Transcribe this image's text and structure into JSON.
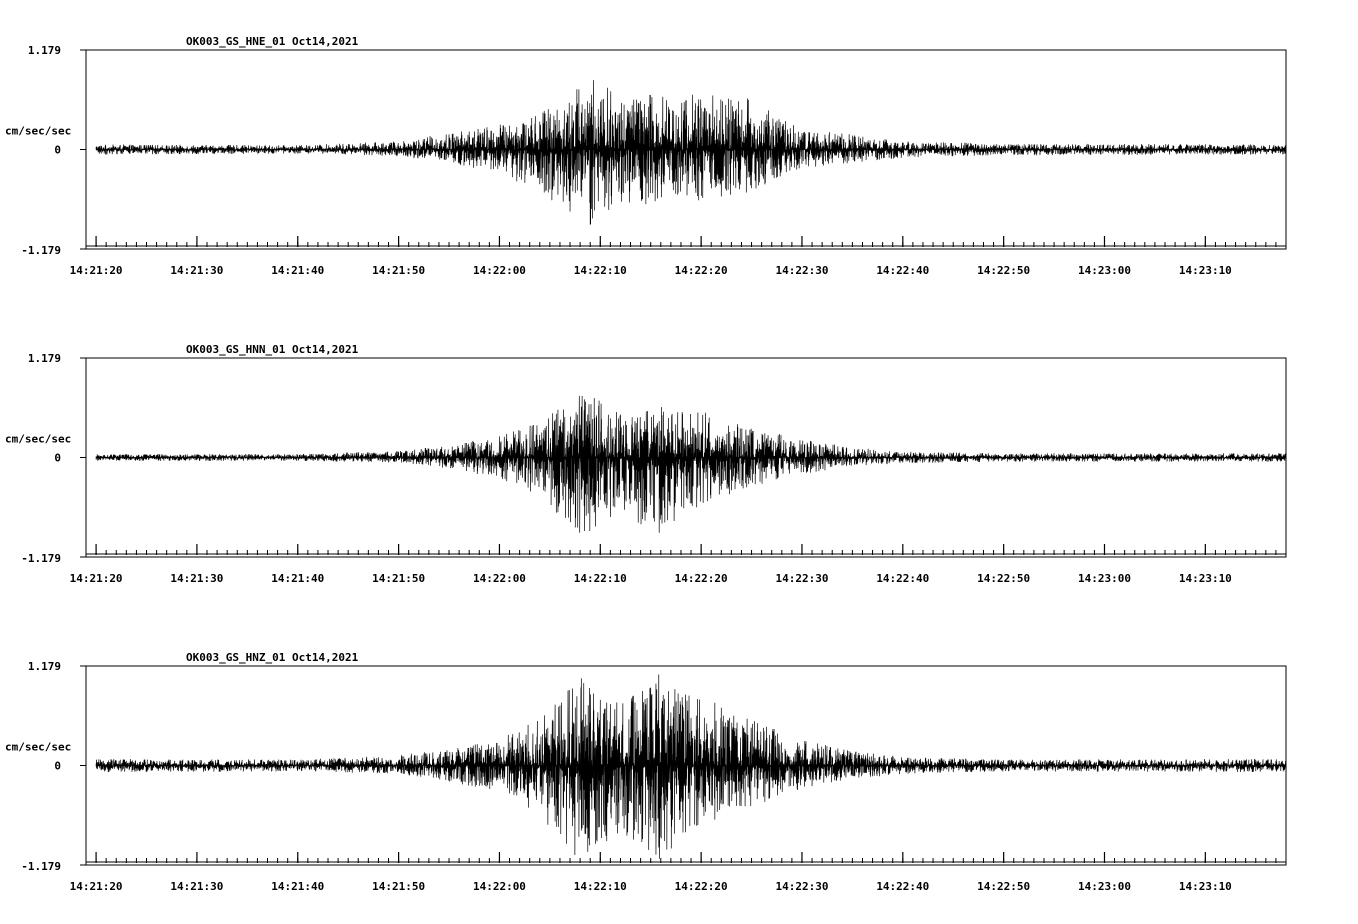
{
  "chart_data": [
    {
      "type": "line",
      "title": "OK003_GS_HNE_01  Oct14,2021",
      "ylabel": "cm/sec/sec",
      "ylim": [
        -1.179,
        1.179
      ],
      "yticks": [
        "1.179",
        "0",
        "-1.179"
      ],
      "xlim": [
        "14:21:19",
        "14:23:18"
      ],
      "xticks": [
        "14:21:20",
        "14:21:30",
        "14:21:40",
        "14:21:50",
        "14:22:00",
        "14:22:10",
        "14:22:20",
        "14:22:30",
        "14:22:40",
        "14:22:50",
        "14:23:00",
        "14:23:10"
      ],
      "grid": false,
      "series": [
        {
          "start": "14:21:20",
          "end": "14:23:18",
          "envelope": [
            {
              "t": "14:21:20",
              "max": 0.06,
              "min": -0.06
            },
            {
              "t": "14:21:40",
              "max": 0.05,
              "min": -0.05
            },
            {
              "t": "14:21:50",
              "max": 0.1,
              "min": -0.08
            },
            {
              "t": "14:21:55",
              "max": 0.2,
              "min": -0.16
            },
            {
              "t": "14:22:00",
              "max": 0.3,
              "min": -0.3
            },
            {
              "t": "14:22:04",
              "max": 0.45,
              "min": -0.5
            },
            {
              "t": "14:22:07",
              "max": 0.65,
              "min": -0.78
            },
            {
              "t": "14:22:09",
              "max": 0.88,
              "min": -0.93
            },
            {
              "t": "14:22:12",
              "max": 0.65,
              "min": -0.7
            },
            {
              "t": "14:22:16",
              "max": 0.68,
              "min": -0.62
            },
            {
              "t": "14:22:20",
              "max": 0.68,
              "min": -0.6
            },
            {
              "t": "14:22:25",
              "max": 0.6,
              "min": -0.5
            },
            {
              "t": "14:22:30",
              "max": 0.25,
              "min": -0.22
            },
            {
              "t": "14:22:35",
              "max": 0.18,
              "min": -0.16
            },
            {
              "t": "14:22:40",
              "max": 0.1,
              "min": -0.1
            },
            {
              "t": "14:22:50",
              "max": 0.07,
              "min": -0.07
            },
            {
              "t": "14:23:18",
              "max": 0.06,
              "min": -0.06
            }
          ]
        }
      ]
    },
    {
      "type": "line",
      "title": "OK003_GS_HNN_01  Oct14,2021",
      "ylabel": "cm/sec/sec",
      "ylim": [
        -1.179,
        1.179
      ],
      "yticks": [
        "1.179",
        "0",
        "-1.179"
      ],
      "xlim": [
        "14:21:19",
        "14:23:18"
      ],
      "xticks": [
        "14:21:20",
        "14:21:30",
        "14:21:40",
        "14:21:50",
        "14:22:00",
        "14:22:10",
        "14:22:20",
        "14:22:30",
        "14:22:40",
        "14:22:50",
        "14:23:00",
        "14:23:10"
      ],
      "grid": false,
      "series": [
        {
          "start": "14:21:20",
          "end": "14:23:18",
          "envelope": [
            {
              "t": "14:21:20",
              "max": 0.04,
              "min": -0.04
            },
            {
              "t": "14:21:40",
              "max": 0.04,
              "min": -0.04
            },
            {
              "t": "14:21:50",
              "max": 0.08,
              "min": -0.06
            },
            {
              "t": "14:21:55",
              "max": 0.15,
              "min": -0.13
            },
            {
              "t": "14:22:00",
              "max": 0.25,
              "min": -0.25
            },
            {
              "t": "14:22:04",
              "max": 0.42,
              "min": -0.45
            },
            {
              "t": "14:22:08",
              "max": 0.8,
              "min": -0.95
            },
            {
              "t": "14:22:12",
              "max": 0.55,
              "min": -0.65
            },
            {
              "t": "14:22:16",
              "max": 0.6,
              "min": -0.95
            },
            {
              "t": "14:22:20",
              "max": 0.55,
              "min": -0.55
            },
            {
              "t": "14:22:25",
              "max": 0.35,
              "min": -0.35
            },
            {
              "t": "14:22:30",
              "max": 0.22,
              "min": -0.2
            },
            {
              "t": "14:22:35",
              "max": 0.12,
              "min": -0.1
            },
            {
              "t": "14:22:40",
              "max": 0.07,
              "min": -0.07
            },
            {
              "t": "14:22:50",
              "max": 0.05,
              "min": -0.05
            },
            {
              "t": "14:23:18",
              "max": 0.05,
              "min": -0.05
            }
          ]
        }
      ]
    },
    {
      "type": "line",
      "title": "OK003_GS_HNZ_01  Oct14,2021",
      "ylabel": "cm/sec/sec",
      "ylim": [
        -1.179,
        1.179
      ],
      "yticks": [
        "1.179",
        "0",
        "-1.179"
      ],
      "xlim": [
        "14:21:19",
        "14:23:18"
      ],
      "xticks": [
        "14:21:20",
        "14:21:30",
        "14:21:40",
        "14:21:50",
        "14:22:00",
        "14:22:10",
        "14:22:20",
        "14:22:30",
        "14:22:40",
        "14:22:50",
        "14:23:00",
        "14:23:10"
      ],
      "grid": false,
      "series": [
        {
          "start": "14:21:20",
          "end": "14:23:18",
          "envelope": [
            {
              "t": "14:21:20",
              "max": 0.08,
              "min": -0.08
            },
            {
              "t": "14:21:40",
              "max": 0.07,
              "min": -0.07
            },
            {
              "t": "14:21:50",
              "max": 0.12,
              "min": -0.1
            },
            {
              "t": "14:21:55",
              "max": 0.2,
              "min": -0.2
            },
            {
              "t": "14:22:00",
              "max": 0.32,
              "min": -0.3
            },
            {
              "t": "14:22:04",
              "max": 0.55,
              "min": -0.6
            },
            {
              "t": "14:22:08",
              "max": 1.05,
              "min": -1.15
            },
            {
              "t": "14:22:12",
              "max": 0.75,
              "min": -0.8
            },
            {
              "t": "14:22:16",
              "max": 1.1,
              "min": -1.12
            },
            {
              "t": "14:22:20",
              "max": 0.8,
              "min": -0.7
            },
            {
              "t": "14:22:25",
              "max": 0.6,
              "min": -0.5
            },
            {
              "t": "14:22:30",
              "max": 0.3,
              "min": -0.28
            },
            {
              "t": "14:22:35",
              "max": 0.18,
              "min": -0.16
            },
            {
              "t": "14:22:40",
              "max": 0.1,
              "min": -0.1
            },
            {
              "t": "14:22:50",
              "max": 0.07,
              "min": -0.07
            },
            {
              "t": "14:23:18",
              "max": 0.08,
              "min": -0.08
            }
          ]
        }
      ]
    }
  ]
}
